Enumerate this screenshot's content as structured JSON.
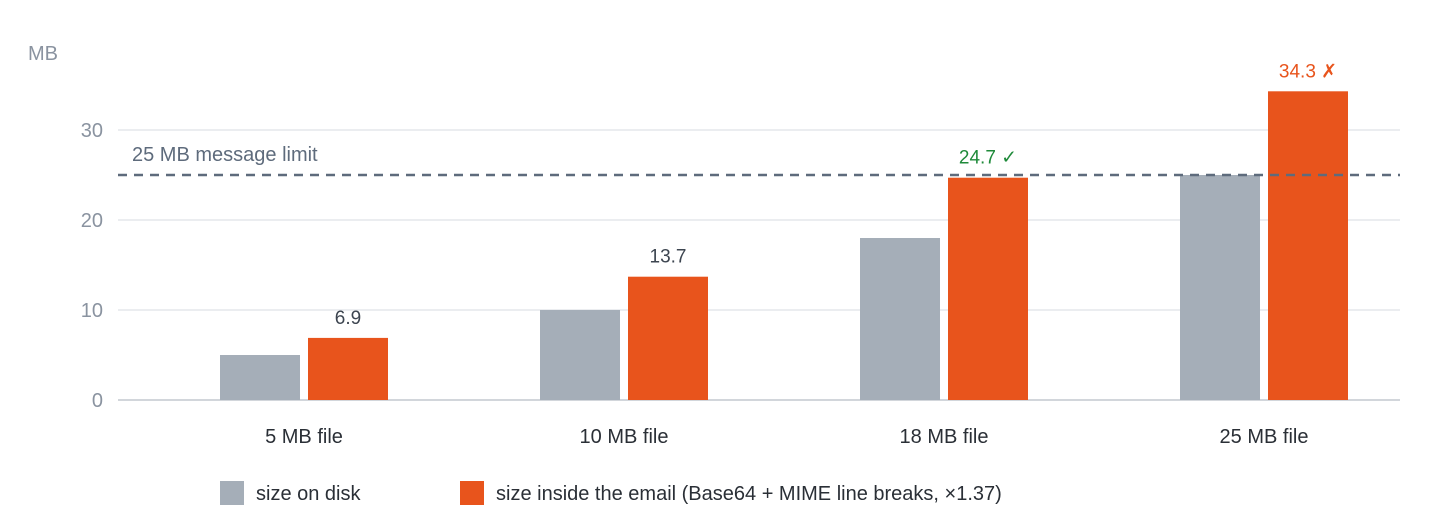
{
  "chart_data": {
    "type": "bar",
    "categories": [
      "5 MB file",
      "10 MB file",
      "18 MB file",
      "25 MB file"
    ],
    "ylabel": "MB",
    "ylim": [
      0,
      35
    ],
    "yticks": [
      0,
      10,
      20,
      30
    ],
    "grid": true,
    "legend_position": "bottom",
    "series": [
      {
        "name": "size on disk",
        "values": [
          5,
          10,
          18,
          25
        ],
        "color": "#a5aeb8",
        "labels": [
          "",
          "",
          "",
          ""
        ]
      },
      {
        "name": "size inside the email (Base64 + MIME line breaks, ×1.37)",
        "values": [
          6.9,
          13.7,
          24.7,
          34.3
        ],
        "color": "#e8541c",
        "labels": [
          "6.9",
          "13.7",
          "24.7 ✓",
          "34.3 ✗"
        ]
      }
    ],
    "label_colors": [
      "#3d4550",
      "#3d4550",
      "#1f8a3a",
      "#e8541c"
    ],
    "reference_line": {
      "value": 25,
      "label": "25 MB message limit",
      "color": "#5e6b7c"
    }
  }
}
